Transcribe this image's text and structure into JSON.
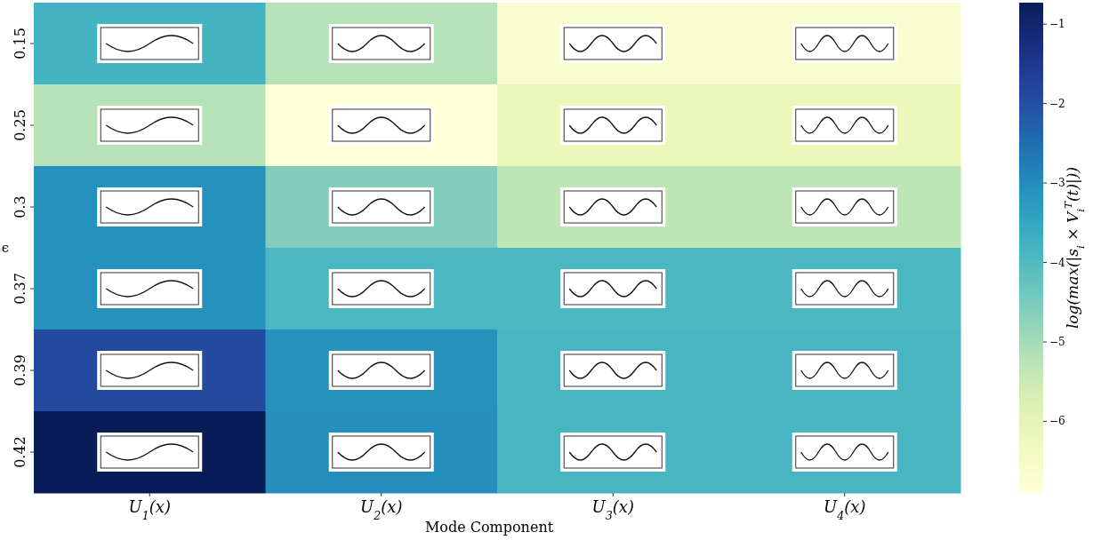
{
  "chart_data": {
    "type": "heatmap",
    "xlabel": "Mode Component",
    "ylabel": "ϵ",
    "clabel": "log(max(|s$_{i}$ × V$_{i}$$^{T}$(t)|))",
    "categories": [
      "U$_{1}$(x)",
      "U$_{2}$(x)",
      "U$_{3}$(x)",
      "U$_{4}$(x)"
    ],
    "y_categories": [
      "0.15",
      "0.25",
      "0.3",
      "0.37",
      "0.39",
      "0.42"
    ],
    "cells": [
      [
        -3.8,
        -5.2,
        -6.7,
        -6.7
      ],
      [
        -5.2,
        -6.9,
        -6.2,
        -6.2
      ],
      [
        -3.1,
        -4.6,
        -5.3,
        -5.3
      ],
      [
        -3.1,
        -3.9,
        -3.9,
        -3.9
      ],
      [
        -1.9,
        -3.1,
        -3.85,
        -3.85
      ],
      [
        -0.73,
        -3.05,
        -3.85,
        -3.85
      ]
    ],
    "clim": [
      -6.9,
      -0.73
    ],
    "cticks": [
      {
        "value": -1,
        "label": "−1"
      },
      {
        "value": -2,
        "label": "−2"
      },
      {
        "value": -3,
        "label": "−3"
      },
      {
        "value": -4,
        "label": "−4"
      },
      {
        "value": -5,
        "label": "−5"
      },
      {
        "value": -6,
        "label": "−6"
      }
    ]
  }
}
